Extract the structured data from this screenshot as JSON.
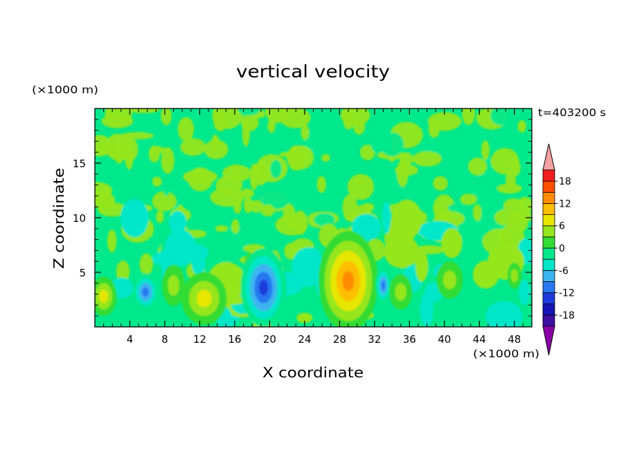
{
  "chart_data": {
    "type": "heatmap",
    "title": "vertical velocity",
    "xlabel": "X coordinate",
    "ylabel": "Z coordinate",
    "x_unit": "(×1000 m)",
    "y_unit": "(×1000 m)",
    "time_label": "t=403200 s",
    "xlim": [
      0,
      50
    ],
    "ylim": [
      0,
      20
    ],
    "x_ticks": [
      4,
      8,
      12,
      16,
      20,
      24,
      28,
      32,
      36,
      40,
      44,
      48
    ],
    "y_ticks": [
      5,
      10,
      15
    ],
    "colorbar": {
      "levels": [
        -21,
        -18,
        -15,
        -12,
        -9,
        -6,
        -3,
        0,
        3,
        6,
        9,
        12,
        15,
        18,
        21
      ],
      "labels": [
        18,
        12,
        6,
        0,
        -6,
        -12,
        -18
      ],
      "colors": [
        "#8a00a8",
        "#3c0fa0",
        "#1414b4",
        "#1e3cdc",
        "#2878f0",
        "#3cb4f0",
        "#00e6c8",
        "#00e88c",
        "#32dc32",
        "#96e61e",
        "#e6e600",
        "#ffbe00",
        "#ff8c00",
        "#ff5000",
        "#f01e1e",
        "#f5a0a0"
      ],
      "extend": "both"
    },
    "features": [
      {
        "x": 1.0,
        "z": 2.8,
        "value": 9,
        "desc": "updraft"
      },
      {
        "x": 5.8,
        "z": 3.2,
        "value": -12,
        "desc": "downdraft"
      },
      {
        "x": 9.0,
        "z": 3.8,
        "value": 6,
        "desc": "updraft"
      },
      {
        "x": 12.5,
        "z": 2.6,
        "value": 9,
        "desc": "updraft"
      },
      {
        "x": 17.8,
        "z": 5.6,
        "value": 6,
        "desc": "updraft"
      },
      {
        "x": 19.3,
        "z": 3.6,
        "value": -15,
        "desc": "downdraft"
      },
      {
        "x": 29.0,
        "z": 4.2,
        "value": 15,
        "desc": "updraft"
      },
      {
        "x": 33.0,
        "z": 3.8,
        "value": -12,
        "desc": "downdraft"
      },
      {
        "x": 35.0,
        "z": 3.2,
        "value": 6,
        "desc": "updraft"
      },
      {
        "x": 40.6,
        "z": 4.3,
        "value": 6,
        "desc": "updraft"
      },
      {
        "x": 48.0,
        "z": 4.7,
        "value": 6,
        "desc": "updraft"
      }
    ]
  }
}
